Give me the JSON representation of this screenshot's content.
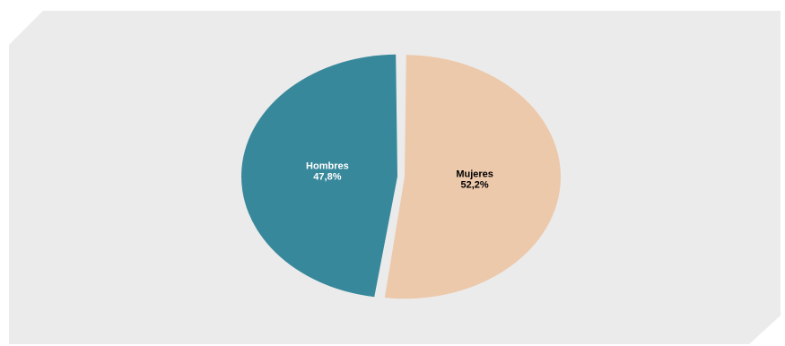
{
  "chart_data": {
    "type": "pie",
    "title": "",
    "slices": [
      {
        "label": "Mujeres",
        "value": 52.2,
        "value_text": "52,2%",
        "color": "#EDC9AB",
        "label_color": "#000000"
      },
      {
        "label": "Hombres",
        "value": 47.8,
        "value_text": "47,8%",
        "color": "#38889B",
        "label_color": "#FFFFFF"
      }
    ],
    "start_position": "top",
    "direction": "clockwise",
    "legend": "none",
    "background_color": "#EBEBEB"
  }
}
